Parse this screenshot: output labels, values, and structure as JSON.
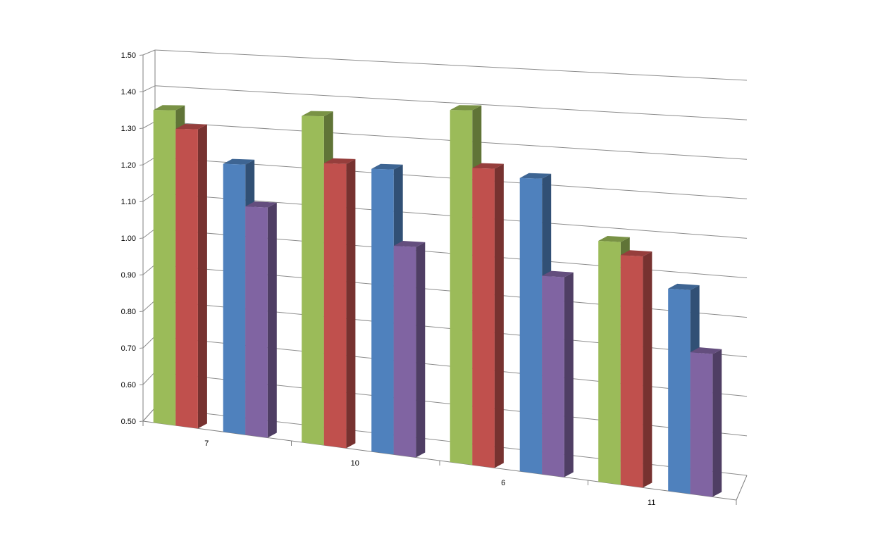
{
  "chart_data": {
    "type": "bar",
    "categories": [
      "7",
      "10",
      "6",
      "11"
    ],
    "series": [
      {
        "color": "#9BBB59",
        "values": [
          1.35,
          1.34,
          1.36,
          1.06
        ]
      },
      {
        "color": "#C0504D",
        "values": [
          1.3,
          1.22,
          1.22,
          1.03
        ]
      },
      {
        "color": "#4F81BD",
        "values": [
          1.21,
          1.21,
          1.2,
          0.96
        ]
      },
      {
        "color": "#8064A2",
        "values": [
          1.1,
          1.02,
          0.97,
          0.82
        ]
      }
    ],
    "ylim": [
      0.5,
      1.5
    ],
    "yticks": [
      "0.50",
      "0.60",
      "0.70",
      "0.80",
      "0.90",
      "1.00",
      "1.10",
      "1.20",
      "1.30",
      "1.40",
      "1.50"
    ],
    "grid": true,
    "legend": "none",
    "style": "3d-clustered-column"
  }
}
